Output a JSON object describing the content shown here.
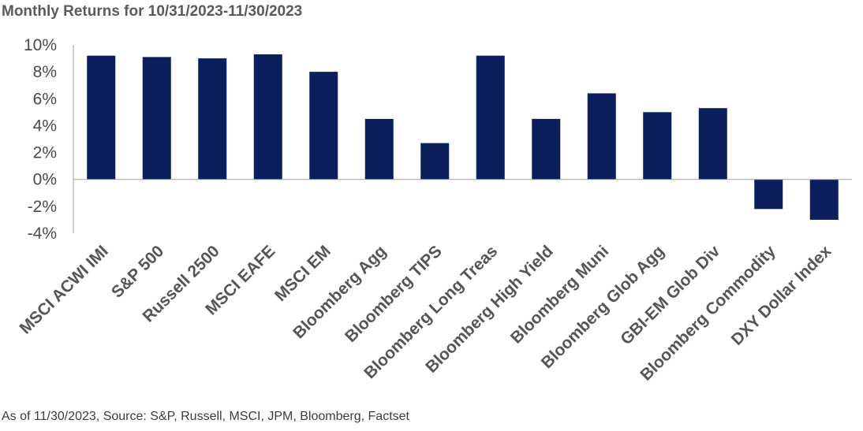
{
  "chart_data": {
    "type": "bar",
    "title": "Monthly Returns for 10/31/2023-11/30/2023",
    "categories": [
      "MSCI ACWI IMI",
      "S&P 500",
      "Russell 2500",
      "MSCI EAFE",
      "MSCI EM",
      "Bloomberg Agg",
      "Bloomberg TIPS",
      "Bloomberg Long Treas",
      "Bloomberg High Yield",
      "Bloomberg Muni",
      "Bloomberg Glob Agg",
      "GBI-EM Glob Div",
      "Bloomberg Commodity",
      "DXY Dollar Index"
    ],
    "values": [
      9.2,
      9.1,
      9.0,
      9.3,
      8.0,
      4.5,
      2.7,
      9.2,
      4.5,
      6.4,
      5.0,
      5.3,
      -2.2,
      -3.0
    ],
    "yticks": [
      "10%",
      "8%",
      "6%",
      "4%",
      "2%",
      "0%",
      "-2%",
      "-4%"
    ],
    "ytick_values": [
      10,
      8,
      6,
      4,
      2,
      0,
      -2,
      -4
    ],
    "ylim": [
      -4,
      10
    ],
    "xlabel": "",
    "ylabel": "",
    "bar_color": "#0a1f5c",
    "grid": false
  },
  "footer": "As of 11/30/2023, Source: S&P, Russell, MSCI, JPM, Bloomberg, Factset"
}
